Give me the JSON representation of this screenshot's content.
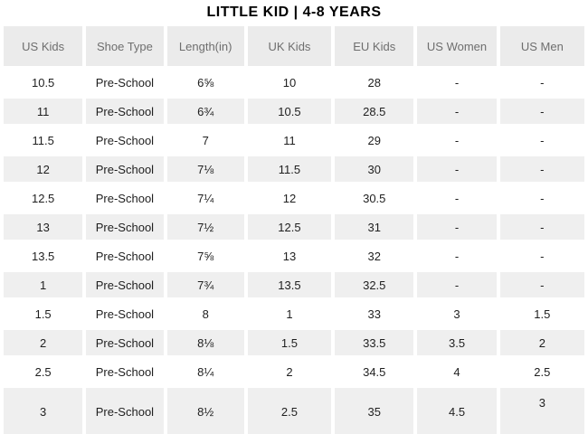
{
  "title": "LITTLE KID | 4-8 YEARS",
  "table": {
    "columns": [
      "US Kids",
      "Shoe Type",
      "Length(in)",
      "UK Kids",
      "EU Kids",
      "US Women",
      "US Men"
    ],
    "rows": [
      [
        "10.5",
        "Pre-School",
        "6⅝",
        "10",
        "28",
        "-",
        "-"
      ],
      [
        "11",
        "Pre-School",
        "6¾",
        "10.5",
        "28.5",
        "-",
        "-"
      ],
      [
        "11.5",
        "Pre-School",
        "7",
        "11",
        "29",
        "-",
        "-"
      ],
      [
        "12",
        "Pre-School",
        "7⅛",
        "11.5",
        "30",
        "-",
        "-"
      ],
      [
        "12.5",
        "Pre-School",
        "7¼",
        "12",
        "30.5",
        "-",
        "-"
      ],
      [
        "13",
        "Pre-School",
        "7½",
        "12.5",
        "31",
        "-",
        "-"
      ],
      [
        "13.5",
        "Pre-School",
        "7⅝",
        "13",
        "32",
        "-",
        "-"
      ],
      [
        "1",
        "Pre-School",
        "7¾",
        "13.5",
        "32.5",
        "-",
        "-"
      ],
      [
        "1.5",
        "Pre-School",
        "8",
        "1",
        "33",
        "3",
        "1.5"
      ],
      [
        "2",
        "Pre-School",
        "8⅛",
        "1.5",
        "33.5",
        "3.5",
        "2"
      ],
      [
        "2.5",
        "Pre-School",
        "8¼",
        "2",
        "34.5",
        "4",
        "2.5"
      ],
      [
        "3",
        "Pre-School",
        "8½",
        "2.5",
        "35",
        "4.5",
        "3"
      ]
    ]
  },
  "colors": {
    "header_bg": "#ebebeb",
    "header_text": "#6e6e6e",
    "row_bg": "#ffffff",
    "row_alt_bg": "#efefef",
    "cell_text": "#1f1f1f",
    "title_text": "#000000"
  }
}
